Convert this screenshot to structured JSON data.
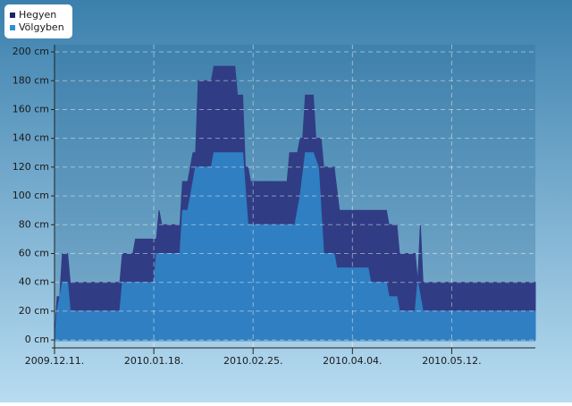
{
  "chart_data": {
    "type": "area",
    "xlim": [
      "2009.12.11.",
      "2010.06.13."
    ],
    "xticks": [
      "2009.12.11.",
      "2010.01.18.",
      "2010.02.25.",
      "2010.04.04.",
      "2010.05.12."
    ],
    "ylim": [
      -8,
      205
    ],
    "yticks": [
      {
        "value": 0,
        "label": "0 cm"
      },
      {
        "value": 20,
        "label": "20 cm"
      },
      {
        "value": 40,
        "label": "40 cm"
      },
      {
        "value": 60,
        "label": "60 cm"
      },
      {
        "value": 80,
        "label": "80 cm"
      },
      {
        "value": 100,
        "label": "100 cm"
      },
      {
        "value": 120,
        "label": "120 cm"
      },
      {
        "value": 140,
        "label": "140 cm"
      },
      {
        "value": 160,
        "label": "160 cm"
      },
      {
        "value": 180,
        "label": "180 cm"
      },
      {
        "value": 200,
        "label": "200 cm"
      }
    ],
    "grid": true,
    "legend": "top-left",
    "series": [
      {
        "name": "Hegyen",
        "color": "#303d85",
        "legend_color": "#1b2266",
        "x": [
          "2009.12.11.",
          "2009.12.12.",
          "2009.12.13.",
          "2009.12.14.",
          "2009.12.16.",
          "2009.12.17.",
          "2010.01.05.",
          "2010.01.06.",
          "2010.01.10.",
          "2010.01.11.",
          "2010.01.19.",
          "2010.01.20.",
          "2010.01.21.",
          "2010.01.28.",
          "2010.01.29.",
          "2010.01.31.",
          "2010.02.01.",
          "2010.02.02.",
          "2010.02.03.",
          "2010.02.04.",
          "2010.02.09.",
          "2010.02.10.",
          "2010.02.18.",
          "2010.02.19.",
          "2010.02.21.",
          "2010.02.22.",
          "2010.02.23.",
          "2010.02.24.",
          "2010.03.10.",
          "2010.03.11.",
          "2010.03.14.",
          "2010.03.15.",
          "2010.03.16.",
          "2010.03.17.",
          "2010.03.20.",
          "2010.03.21.",
          "2010.03.23.",
          "2010.03.24.",
          "2010.03.28.",
          "2010.03.30.",
          "2010.04.17.",
          "2010.04.18.",
          "2010.04.21.",
          "2010.04.22.",
          "2010.04.28.",
          "2010.04.29.",
          "2010.04.30.",
          "2010.05.01.",
          "2010.06.13."
        ],
        "values": [
          0,
          30,
          30,
          60,
          60,
          40,
          40,
          60,
          60,
          70,
          70,
          90,
          80,
          80,
          110,
          110,
          120,
          130,
          130,
          180,
          180,
          190,
          190,
          170,
          170,
          120,
          120,
          110,
          110,
          130,
          130,
          140,
          140,
          170,
          170,
          140,
          140,
          120,
          120,
          90,
          90,
          80,
          80,
          60,
          60,
          40,
          80,
          40,
          40
        ]
      },
      {
        "name": "Völgyben",
        "color": "#2f7fc2",
        "legend_color": "#2a93d6",
        "x": [
          "2009.12.11.",
          "2009.12.12.",
          "2009.12.14.",
          "2009.12.16.",
          "2009.12.17.",
          "2010.01.05.",
          "2010.01.06.",
          "2010.01.18.",
          "2010.01.19.",
          "2010.01.28.",
          "2010.01.29.",
          "2010.01.31.",
          "2010.02.03.",
          "2010.02.09.",
          "2010.02.10.",
          "2010.02.21.",
          "2010.02.23.",
          "2010.03.13.",
          "2010.03.15.",
          "2010.03.17.",
          "2010.03.20.",
          "2010.03.22.",
          "2010.03.24.",
          "2010.03.28.",
          "2010.03.29.",
          "2010.04.10.",
          "2010.04.11.",
          "2010.04.17.",
          "2010.04.18.",
          "2010.04.21.",
          "2010.04.22.",
          "2010.04.28.",
          "2010.04.29.",
          "2010.05.01.",
          "2010.06.13."
        ],
        "values": [
          0,
          20,
          40,
          40,
          20,
          20,
          40,
          40,
          60,
          60,
          90,
          90,
          120,
          120,
          130,
          130,
          80,
          80,
          100,
          130,
          130,
          120,
          60,
          60,
          50,
          50,
          40,
          40,
          30,
          30,
          20,
          20,
          40,
          20,
          20
        ]
      }
    ]
  }
}
